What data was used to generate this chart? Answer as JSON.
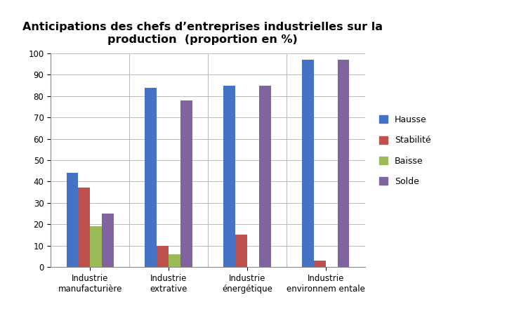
{
  "title": "Anticipations des chefs d’entreprises industrielles sur la\nproduction  (proportion en %)",
  "categories": [
    "Industrie\nmanufacturière",
    "Industrie\nextrative",
    "Industrie\nénergétique",
    "Industrie\nenvironnem entale"
  ],
  "series": {
    "Hausse": [
      44,
      84,
      85,
      97
    ],
    "Stabilité": [
      37,
      10,
      15,
      3
    ],
    "Baisse": [
      19,
      6,
      0,
      0
    ],
    "Solde": [
      25,
      78,
      85,
      97
    ]
  },
  "colors": {
    "Hausse": "#4472C4",
    "Stabilité": "#C0504D",
    "Baisse": "#9BBB59",
    "Solde": "#8064A2"
  },
  "ylim": [
    0,
    100
  ],
  "yticks": [
    0,
    10,
    20,
    30,
    40,
    50,
    60,
    70,
    80,
    90,
    100
  ],
  "bar_width": 0.15,
  "background_color": "#FFFFFF",
  "grid_color": "#BBBBBB",
  "title_fontsize": 11.5,
  "tick_fontsize": 8.5,
  "legend_fontsize": 9
}
